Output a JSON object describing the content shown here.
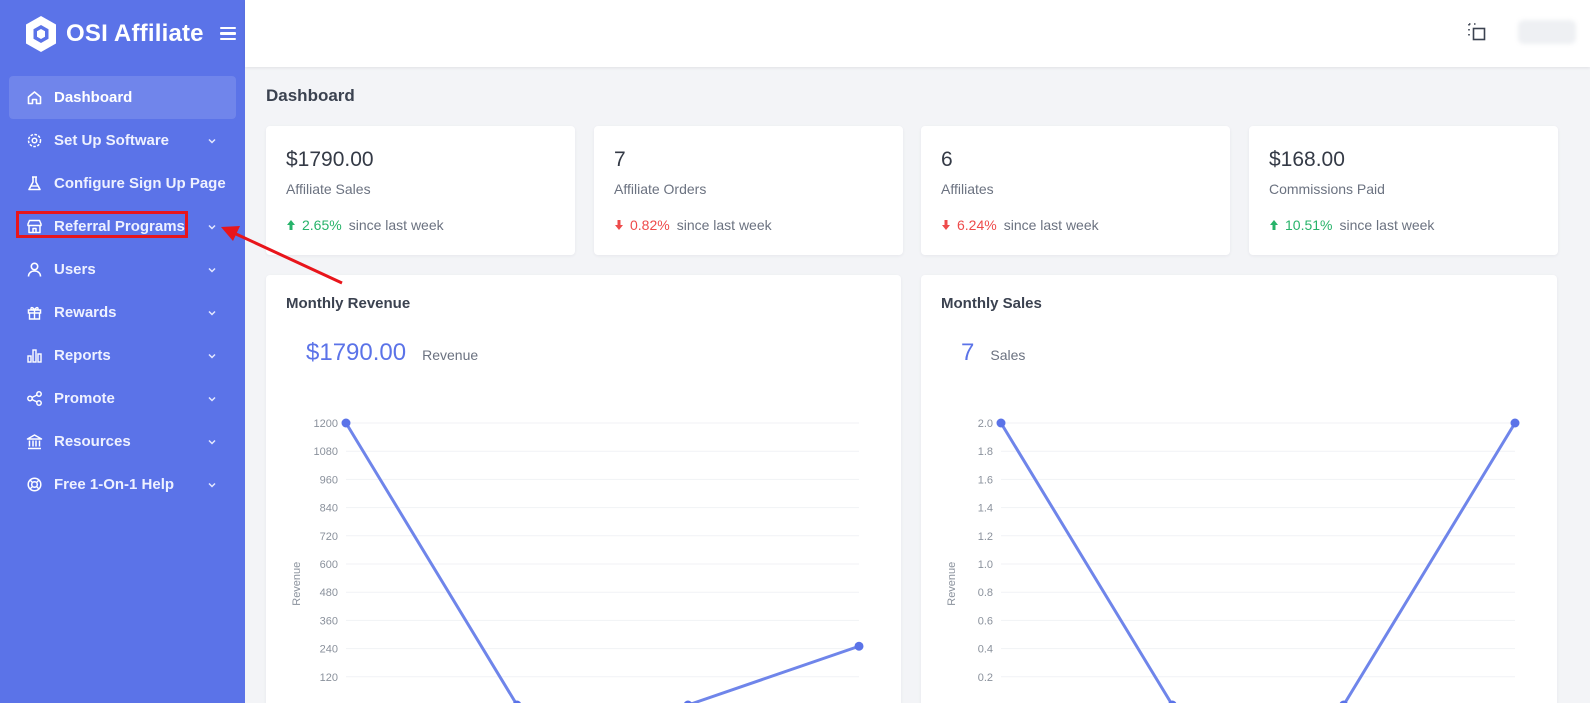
{
  "brand": {
    "name": "OSI Affiliate"
  },
  "sidebar": {
    "items": [
      {
        "label": "Dashboard",
        "icon": "home-icon",
        "active": true,
        "has_submenu": false
      },
      {
        "label": "Set Up Software",
        "icon": "gear-icon",
        "active": false,
        "has_submenu": true
      },
      {
        "label": "Configure Sign Up Page",
        "icon": "flask-icon",
        "active": false,
        "has_submenu": false
      },
      {
        "label": "Referral Programs",
        "icon": "store-icon",
        "active": false,
        "has_submenu": true
      },
      {
        "label": "Users",
        "icon": "user-icon",
        "active": false,
        "has_submenu": true
      },
      {
        "label": "Rewards",
        "icon": "gift-icon",
        "active": false,
        "has_submenu": true
      },
      {
        "label": "Reports",
        "icon": "bar-chart-icon",
        "active": false,
        "has_submenu": true
      },
      {
        "label": "Promote",
        "icon": "share-icon",
        "active": false,
        "has_submenu": true
      },
      {
        "label": "Resources",
        "icon": "bank-icon",
        "active": false,
        "has_submenu": true
      },
      {
        "label": "Free 1-On-1 Help",
        "icon": "lifebuoy-icon",
        "active": false,
        "has_submenu": true
      }
    ]
  },
  "page": {
    "title": "Dashboard"
  },
  "stats": [
    {
      "value": "$1790.00",
      "label": "Affiliate Sales",
      "change": "2.65%",
      "direction": "up",
      "suffix": "since last week"
    },
    {
      "value": "7",
      "label": "Affiliate Orders",
      "change": "0.82%",
      "direction": "down",
      "suffix": "since last week"
    },
    {
      "value": "6",
      "label": "Affiliates",
      "change": "6.24%",
      "direction": "down",
      "suffix": "since last week"
    },
    {
      "value": "$168.00",
      "label": "Commissions Paid",
      "change": "10.51%",
      "direction": "up",
      "suffix": "since last week"
    }
  ],
  "charts": {
    "revenue": {
      "title": "Monthly Revenue",
      "big_value": "$1790.00",
      "big_label": "Revenue"
    },
    "sales": {
      "title": "Monthly Sales",
      "big_value": "7",
      "big_label": "Sales"
    }
  },
  "colors": {
    "primary": "#5b73e8",
    "line": "#6f85ea",
    "up": "#27b36a",
    "down": "#ee4b4b",
    "highlight": "#e8151b"
  },
  "chart_data": [
    {
      "type": "line",
      "title": "Monthly Revenue",
      "ylabel": "Revenue",
      "yticks": [
        1200,
        1080,
        960,
        840,
        720,
        600,
        480,
        360,
        240,
        120
      ],
      "ylim": [
        0,
        1200
      ],
      "x": [
        0,
        1,
        2,
        3
      ],
      "series": [
        {
          "name": "Revenue",
          "values": [
            1200,
            0,
            0,
            250
          ]
        }
      ]
    },
    {
      "type": "line",
      "title": "Monthly Sales",
      "ylabel": "Revenue",
      "yticks": [
        "2.0",
        "1.8",
        "1.6",
        "1.4",
        "1.2",
        "1.0",
        "0.8",
        "0.6",
        "0.4",
        "0.2"
      ],
      "ylim": [
        0,
        2
      ],
      "x": [
        0,
        1,
        2,
        3
      ],
      "series": [
        {
          "name": "Sales",
          "values": [
            2,
            0,
            0,
            2
          ]
        }
      ]
    }
  ]
}
